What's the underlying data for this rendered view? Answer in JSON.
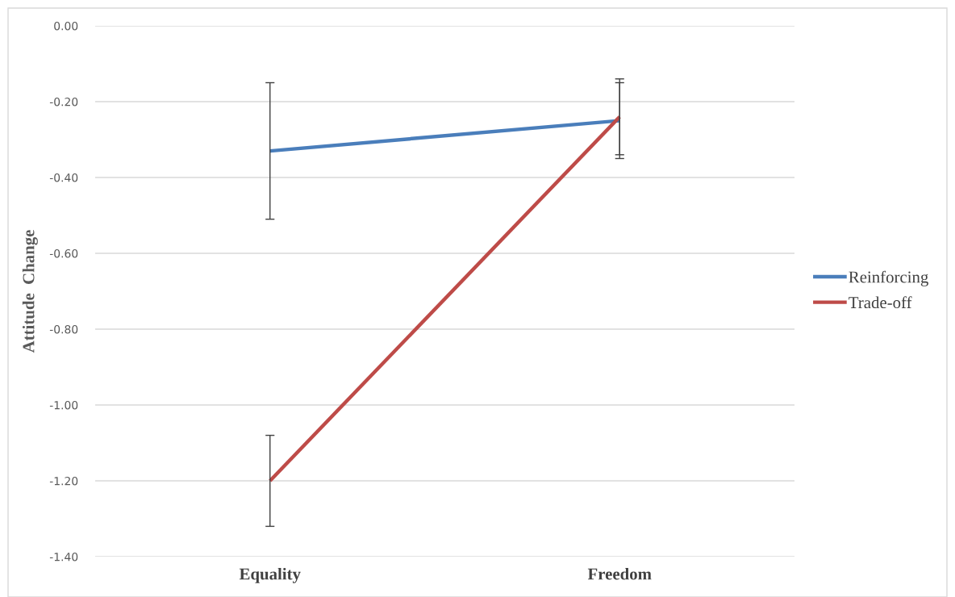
{
  "chart_data": {
    "type": "line",
    "ylabel": "Attitude  Change",
    "categories": [
      "Equality",
      "Freedom"
    ],
    "series": [
      {
        "name": "Reinforcing",
        "color": "#4a7ebb",
        "values": [
          -0.33,
          -0.25
        ],
        "errors": [
          0.18,
          0.1
        ]
      },
      {
        "name": "Trade-off",
        "color": "#be4b48",
        "values": [
          -1.2,
          -0.24
        ],
        "errors": [
          0.12,
          0.1
        ]
      }
    ],
    "ylim": [
      -1.4,
      0
    ],
    "yticks": [
      {
        "value": -1.4,
        "label": "-1.40"
      },
      {
        "value": -1.2,
        "label": "-1.20"
      },
      {
        "value": -1.0,
        "label": "-1.00"
      },
      {
        "value": -0.8,
        "label": "-0.80"
      },
      {
        "value": -0.6,
        "label": "-0.60"
      },
      {
        "value": -0.4,
        "label": "-0.40"
      },
      {
        "value": -0.2,
        "label": "-0.20"
      },
      {
        "value": 0,
        "label": "0.00"
      }
    ],
    "grid": "y",
    "legend": "right",
    "marker": "none",
    "line_style": "solid"
  }
}
